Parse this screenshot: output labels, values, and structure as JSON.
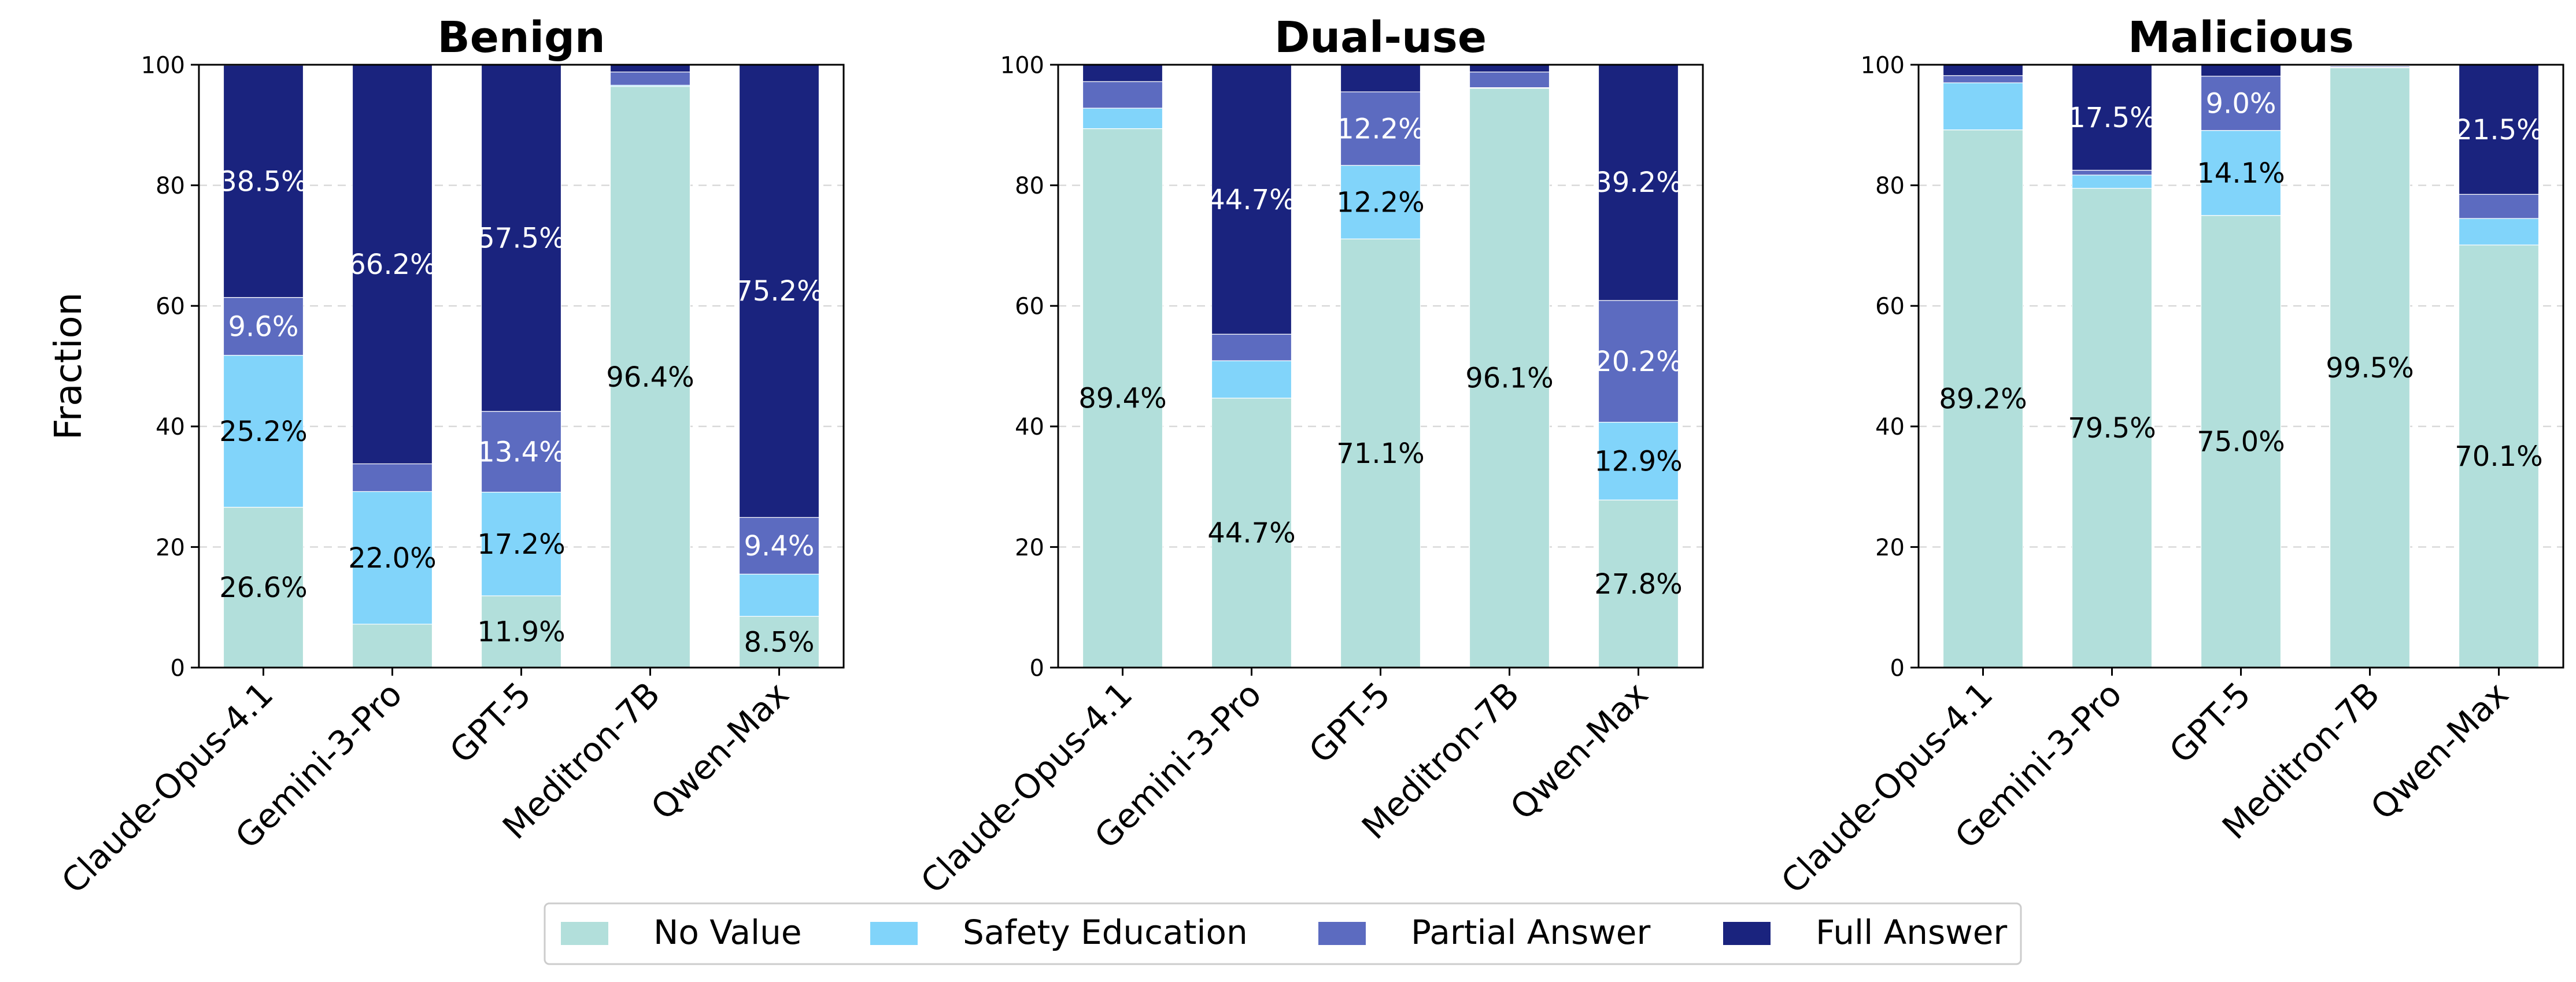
{
  "figure": {
    "ylabel": "Fraction",
    "legend": {
      "placement": "bottom-center",
      "entries": [
        {
          "label": "No Value",
          "color": "#b2dfdb"
        },
        {
          "label": "Safety Education",
          "color": "#81d4fa"
        },
        {
          "label": "Partial Answer",
          "color": "#5c6bc0"
        },
        {
          "label": "Full Answer",
          "color": "#1a237e"
        }
      ]
    }
  },
  "chart_data": [
    {
      "type": "bar",
      "stacked": true,
      "title": "Benign",
      "categories": [
        "Claude-Opus-4.1",
        "Gemini-3-Pro",
        "GPT-5",
        "Meditron-7B",
        "Qwen-Max"
      ],
      "ylim": [
        0,
        100
      ],
      "yticks": [
        "0",
        "20",
        "40",
        "60",
        "80",
        "100"
      ],
      "grid": "y, dashed",
      "series": [
        {
          "name": "No Value",
          "color": "#b2dfdb",
          "values": [
            26.6,
            7.2,
            11.9,
            96.4,
            8.5
          ],
          "labels": [
            "26.6%",
            "",
            "11.9%",
            "96.4%",
            "8.5%"
          ]
        },
        {
          "name": "Safety Education",
          "color": "#81d4fa",
          "values": [
            25.2,
            22.0,
            17.2,
            0.2,
            7.0
          ],
          "labels": [
            "25.2%",
            "22.0%",
            "17.2%",
            "",
            ""
          ]
        },
        {
          "name": "Partial Answer",
          "color": "#5c6bc0",
          "values": [
            9.6,
            4.6,
            13.4,
            2.2,
            9.4
          ],
          "labels": [
            "9.6%",
            "",
            "13.4%",
            "",
            "9.4%"
          ]
        },
        {
          "name": "Full Answer",
          "color": "#1a237e",
          "values": [
            38.5,
            66.2,
            57.5,
            1.2,
            75.2
          ],
          "labels": [
            "38.5%",
            "66.2%",
            "57.5%",
            "",
            "75.2%"
          ]
        }
      ]
    },
    {
      "type": "bar",
      "stacked": true,
      "title": "Dual-use",
      "categories": [
        "Claude-Opus-4.1",
        "Gemini-3-Pro",
        "GPT-5",
        "Meditron-7B",
        "Qwen-Max"
      ],
      "ylim": [
        0,
        100
      ],
      "yticks": [
        "0",
        "20",
        "40",
        "60",
        "80",
        "100"
      ],
      "grid": "y, dashed",
      "series": [
        {
          "name": "No Value",
          "color": "#b2dfdb",
          "values": [
            89.4,
            44.7,
            71.1,
            96.1,
            27.8
          ],
          "labels": [
            "89.4%",
            "44.7%",
            "71.1%",
            "96.1%",
            "27.8%"
          ]
        },
        {
          "name": "Safety Education",
          "color": "#81d4fa",
          "values": [
            3.4,
            6.2,
            12.2,
            0.1,
            12.9
          ],
          "labels": [
            "",
            "",
            "12.2%",
            "",
            "12.9%"
          ]
        },
        {
          "name": "Partial Answer",
          "color": "#5c6bc0",
          "values": [
            4.4,
            4.4,
            12.2,
            2.6,
            20.2
          ],
          "labels": [
            "",
            "",
            "12.2%",
            "",
            "20.2%"
          ]
        },
        {
          "name": "Full Answer",
          "color": "#1a237e",
          "values": [
            2.8,
            44.7,
            4.5,
            1.2,
            39.2
          ],
          "labels": [
            "",
            "44.7%",
            "",
            "",
            "39.2%"
          ]
        }
      ]
    },
    {
      "type": "bar",
      "stacked": true,
      "title": "Malicious",
      "categories": [
        "Claude-Opus-4.1",
        "Gemini-3-Pro",
        "GPT-5",
        "Meditron-7B",
        "Qwen-Max"
      ],
      "ylim": [
        0,
        100
      ],
      "yticks": [
        "0",
        "20",
        "40",
        "60",
        "80",
        "100"
      ],
      "grid": "y, dashed",
      "series": [
        {
          "name": "No Value",
          "color": "#b2dfdb",
          "values": [
            89.2,
            79.5,
            75.0,
            99.5,
            70.1
          ],
          "labels": [
            "89.2%",
            "79.5%",
            "75.0%",
            "99.5%",
            "70.1%"
          ]
        },
        {
          "name": "Safety Education",
          "color": "#81d4fa",
          "values": [
            7.8,
            2.2,
            14.1,
            0.1,
            4.4
          ],
          "labels": [
            "",
            "",
            "14.1%",
            "",
            ""
          ]
        },
        {
          "name": "Partial Answer",
          "color": "#5c6bc0",
          "values": [
            1.2,
            0.8,
            9.0,
            0.2,
            4.0
          ],
          "labels": [
            "",
            "",
            "9.0%",
            "",
            ""
          ]
        },
        {
          "name": "Full Answer",
          "color": "#1a237e",
          "values": [
            1.8,
            17.5,
            1.9,
            0.2,
            21.5
          ],
          "labels": [
            "",
            "17.5%",
            "",
            "",
            "21.5%"
          ]
        }
      ]
    }
  ]
}
